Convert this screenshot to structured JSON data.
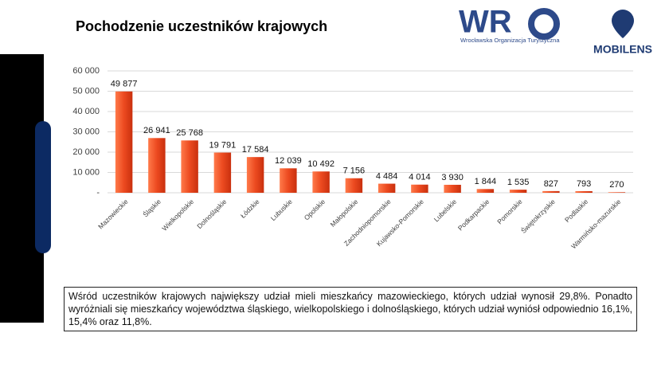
{
  "header": {
    "title": "Pochodzenie uczestników krajowych",
    "logo_main": "WR",
    "logo_sub": "Wrocławska Organizacja Turystyczna",
    "logo_brand": "MOBILENS"
  },
  "chart_data": {
    "type": "bar",
    "categories": [
      "Mazowieckie",
      "Śląskie",
      "Wielkopolskie",
      "Dolnośląskie",
      "Łódzkie",
      "Lubuskie",
      "Opolskie",
      "Małopolskie",
      "Zachodniopomorskie",
      "Kujawsko-Pomorskie",
      "Lubelskie",
      "Podkarpackie",
      "Pomorskie",
      "Świętokrzyskie",
      "Podlaskie",
      "Warmińsko-mazurskie"
    ],
    "values": [
      49877,
      26941,
      25768,
      19791,
      17584,
      12039,
      10492,
      7156,
      4484,
      4014,
      3930,
      1844,
      1535,
      827,
      793,
      270
    ],
    "value_labels": [
      "49 877",
      "26 941",
      "25 768",
      "19 791",
      "17 584",
      "12 039",
      "10 492",
      "7 156",
      "4 484",
      "4 014",
      "3 930",
      "1 844",
      "1 535",
      "827",
      "793",
      "270"
    ],
    "color": "#ec4a20",
    "ylim": [
      0,
      60000
    ],
    "yticks": [
      {
        "value": 0,
        "label": "-"
      },
      {
        "value": 10000,
        "label": "10 000"
      },
      {
        "value": 20000,
        "label": "20 000"
      },
      {
        "value": 30000,
        "label": "30 000"
      },
      {
        "value": 40000,
        "label": "40 000"
      },
      {
        "value": 50000,
        "label": "50 000"
      },
      {
        "value": 60000,
        "label": "60 000"
      }
    ],
    "grid": true
  },
  "note": "Wśród uczestników krajowych największy udział mieli mieszkańcy mazowieckiego, których udział wynosił 29,8%. Ponadto wyróżniali się mieszkańcy województwa śląskiego, wielkopolskiego i dolnośląskiego, których udział wyniósł odpowiednio 16,1%, 15,4% oraz 11,8%."
}
